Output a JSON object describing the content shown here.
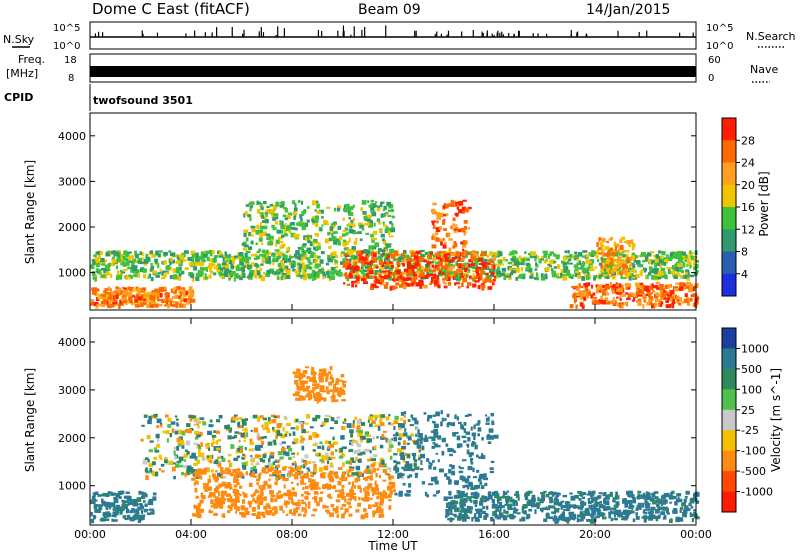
{
  "header": {
    "station": "Dome C East (fitACF)",
    "beam": "Beam 09",
    "date": "14/Jan/2015"
  },
  "top_panels": {
    "nsky_label": "N.Sky",
    "nsearch_label": "N.Search",
    "noise_ticks_left": [
      "10^5",
      "10^0"
    ],
    "noise_ticks_right": [
      "10^5",
      "10^0"
    ],
    "freq_label": "Freq.",
    "freq_unit": "[MHz]",
    "freq_ticks": [
      "18",
      "8"
    ],
    "nave_label": "Nave",
    "nave_ticks": [
      "60",
      "0"
    ],
    "cpid_label": "CPID",
    "cpid_value": "twofsound 3501"
  },
  "panels": {
    "power": {
      "ylabel": "Slant Range [km]",
      "yticks": [
        "4000",
        "3000",
        "2000",
        "1000"
      ],
      "cbar_label": "Power [dB]",
      "cbar_ticks": [
        "28",
        "24",
        "20",
        "16",
        "12",
        "8",
        "4"
      ],
      "cbar_colors": [
        "#ff1e00",
        "#ff6a00",
        "#ffa020",
        "#f0c400",
        "#3ec23a",
        "#2f9a6a",
        "#2a5fb0",
        "#1c2ee0"
      ]
    },
    "velocity": {
      "ylabel": "Slant Range [km]",
      "yticks": [
        "4000",
        "3000",
        "2000",
        "1000"
      ],
      "cbar_label": "Velocity [m s^-1]",
      "cbar_ticks": [
        "1000",
        "500",
        "100",
        "25",
        "-25",
        "-100",
        "-500",
        "-1000"
      ],
      "cbar_colors": [
        "#1c3f9e",
        "#2c7a92",
        "#2e8a5a",
        "#4ec24a",
        "#c8c8c8",
        "#f2c000",
        "#ff8a10",
        "#ff4a00",
        "#ff1a00"
      ]
    }
  },
  "xaxis": {
    "label": "Time UT",
    "ticks": [
      "00:00",
      "04:00",
      "08:00",
      "12:00",
      "16:00",
      "20:00",
      "00:00"
    ]
  },
  "chart_data": [
    {
      "type": "heatmap",
      "title": "Power",
      "x_range": [
        "00:00",
        "24:00"
      ],
      "y_range_km": [
        180,
        4500
      ],
      "colorbar": {
        "label": "Power [dB]",
        "ticks": [
          4,
          8,
          12,
          16,
          20,
          24,
          28
        ]
      },
      "features": [
        {
          "t": [
            0.0,
            24.0
          ],
          "range_km": [
            900,
            1500
          ],
          "dB": 12
        },
        {
          "t": [
            0.0,
            4.0
          ],
          "range_km": [
            300,
            700
          ],
          "dB": 22
        },
        {
          "t": [
            10.0,
            16.0
          ],
          "range_km": [
            700,
            1500
          ],
          "dB": 26
        },
        {
          "t": [
            13.5,
            15.0
          ],
          "range_km": [
            1400,
            2600
          ],
          "dB": 24
        },
        {
          "t": [
            6.0,
            12.0
          ],
          "range_km": [
            1500,
            2600
          ],
          "dB": 12
        },
        {
          "t": [
            19.0,
            24.0
          ],
          "range_km": [
            300,
            800
          ],
          "dB": 24
        },
        {
          "t": [
            20.0,
            21.5
          ],
          "range_km": [
            1000,
            1800
          ],
          "dB": 20
        }
      ]
    },
    {
      "type": "heatmap",
      "title": "Velocity",
      "x_range": [
        "00:00",
        "24:00"
      ],
      "y_range_km": [
        180,
        4500
      ],
      "colorbar": {
        "label": "Velocity [m s^-1]",
        "ticks": [
          -1000,
          -500,
          -100,
          -25,
          25,
          100,
          500,
          1000
        ]
      },
      "features": [
        {
          "t": [
            0.0,
            2.5
          ],
          "range_km": [
            300,
            900
          ],
          "v": 200
        },
        {
          "t": [
            2.0,
            13.0
          ],
          "range_km": [
            1200,
            2500
          ],
          "v": 0
        },
        {
          "t": [
            4.0,
            12.0
          ],
          "range_km": [
            400,
            1400
          ],
          "v": -300
        },
        {
          "t": [
            12.0,
            16.0
          ],
          "range_km": [
            800,
            2600
          ],
          "v": 300
        },
        {
          "t": [
            14.0,
            24.0
          ],
          "range_km": [
            300,
            900
          ],
          "v": 200
        },
        {
          "t": [
            8.0,
            10.0
          ],
          "range_km": [
            2800,
            3500
          ],
          "v": -300
        }
      ]
    }
  ]
}
